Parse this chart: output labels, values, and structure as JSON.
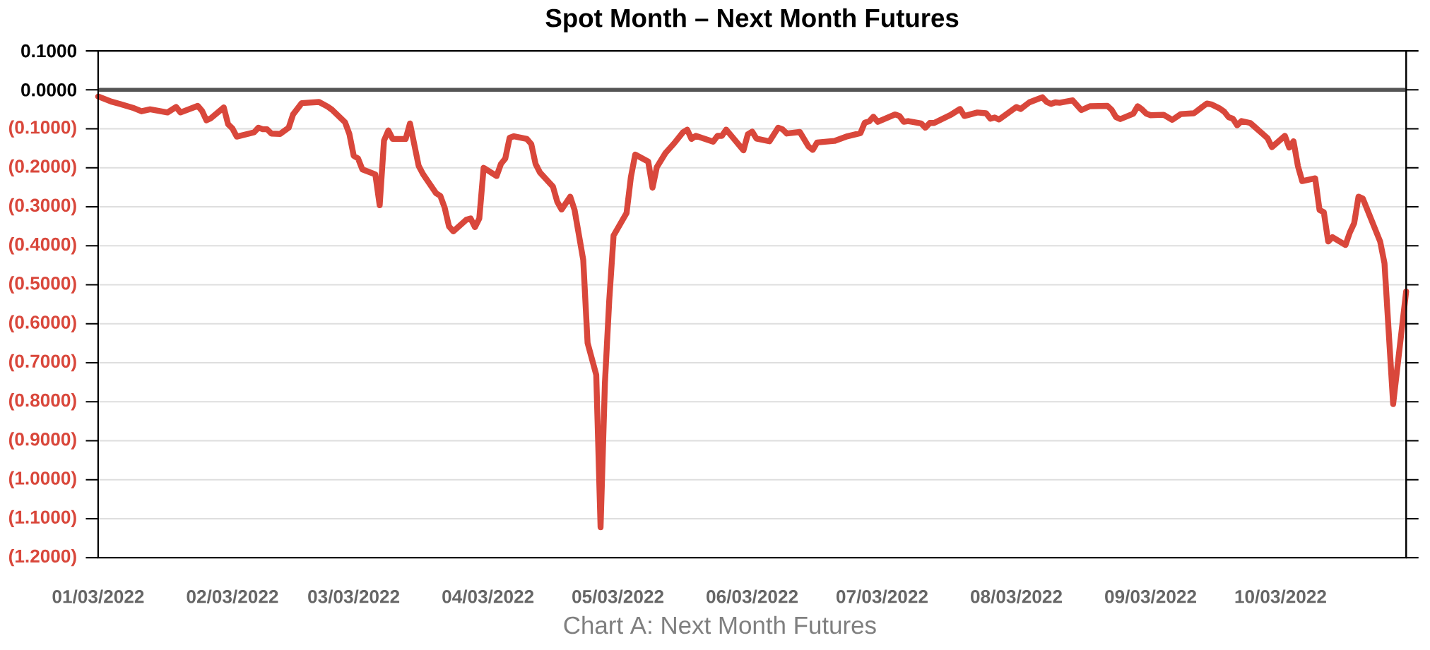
{
  "chart_data": {
    "type": "line",
    "title": "Spot Month – Next Month Futures",
    "annotations": [
      "Chart A: Next Month Futures"
    ],
    "x": [
      "2022-01-03",
      "2022-01-06",
      "2022-01-08",
      "2022-01-11",
      "2022-01-13",
      "2022-01-15",
      "2022-01-19",
      "2022-01-21",
      "2022-01-22",
      "2022-01-26",
      "2022-01-27",
      "2022-01-28",
      "2022-01-29",
      "2022-02-01",
      "2022-02-02",
      "2022-02-03",
      "2022-02-04",
      "2022-02-08",
      "2022-02-09",
      "2022-02-10",
      "2022-02-11",
      "2022-02-12",
      "2022-02-14",
      "2022-02-16",
      "2022-02-17",
      "2022-02-19",
      "2022-02-23",
      "2022-02-25",
      "2022-02-26",
      "2022-03-01",
      "2022-03-02",
      "2022-03-03",
      "2022-03-04",
      "2022-03-05",
      "2022-03-08",
      "2022-03-09",
      "2022-03-10",
      "2022-03-11",
      "2022-03-12",
      "2022-03-15",
      "2022-03-16",
      "2022-03-18",
      "2022-03-19",
      "2022-03-22",
      "2022-03-23",
      "2022-03-24",
      "2022-03-25",
      "2022-03-26",
      "2022-03-29",
      "2022-03-30",
      "2022-03-31",
      "2022-04-01",
      "2022-04-02",
      "2022-04-05",
      "2022-04-06",
      "2022-04-07",
      "2022-04-08",
      "2022-04-09",
      "2022-04-12",
      "2022-04-13",
      "2022-04-14",
      "2022-04-15",
      "2022-04-18",
      "2022-04-19",
      "2022-04-20",
      "2022-04-22",
      "2022-04-23",
      "2022-04-25",
      "2022-04-26",
      "2022-04-28",
      "2022-04-29",
      "2022-04-30",
      "2022-05-01",
      "2022-05-02",
      "2022-05-05",
      "2022-05-06",
      "2022-05-07",
      "2022-05-10",
      "2022-05-11",
      "2022-05-12",
      "2022-05-14",
      "2022-05-16",
      "2022-05-18",
      "2022-05-19",
      "2022-05-20",
      "2022-05-21",
      "2022-05-25",
      "2022-05-26",
      "2022-05-27",
      "2022-05-28",
      "2022-06-01",
      "2022-06-02",
      "2022-06-03",
      "2022-06-04",
      "2022-06-07",
      "2022-06-09",
      "2022-06-10",
      "2022-06-11",
      "2022-06-14",
      "2022-06-16",
      "2022-06-17",
      "2022-06-18",
      "2022-06-22",
      "2022-06-25",
      "2022-06-28",
      "2022-06-29",
      "2022-06-30",
      "2022-07-01",
      "2022-07-02",
      "2022-07-06",
      "2022-07-07",
      "2022-07-08",
      "2022-07-09",
      "2022-07-12",
      "2022-07-13",
      "2022-07-14",
      "2022-07-15",
      "2022-07-19",
      "2022-07-21",
      "2022-07-22",
      "2022-07-24",
      "2022-07-25",
      "2022-07-27",
      "2022-07-28",
      "2022-07-29",
      "2022-07-30",
      "2022-08-03",
      "2022-08-04",
      "2022-08-06",
      "2022-08-09",
      "2022-08-10",
      "2022-08-11",
      "2022-08-12",
      "2022-08-13",
      "2022-08-16",
      "2022-08-18",
      "2022-08-20",
      "2022-08-24",
      "2022-08-25",
      "2022-08-26",
      "2022-08-27",
      "2022-08-30",
      "2022-08-31",
      "2022-09-01",
      "2022-09-02",
      "2022-09-03",
      "2022-09-06",
      "2022-09-08",
      "2022-09-10",
      "2022-09-13",
      "2022-09-15",
      "2022-09-16",
      "2022-09-17",
      "2022-09-19",
      "2022-09-20",
      "2022-09-21",
      "2022-09-22",
      "2022-09-23",
      "2022-09-24",
      "2022-09-26",
      "2022-09-29",
      "2022-09-30",
      "2022-10-01",
      "2022-10-04",
      "2022-10-05",
      "2022-10-06",
      "2022-10-07",
      "2022-10-08",
      "2022-10-11",
      "2022-10-12",
      "2022-10-13",
      "2022-10-14",
      "2022-10-15",
      "2022-10-18",
      "2022-10-19",
      "2022-10-20",
      "2022-10-21",
      "2022-10-22",
      "2022-10-26",
      "2022-10-27",
      "2022-10-29",
      "2022-11-01"
    ],
    "series": [
      {
        "color": "#d9473b",
        "values": [
          -0.017,
          -0.03,
          -0.036,
          -0.046,
          -0.055,
          -0.05,
          -0.058,
          -0.044,
          -0.058,
          -0.041,
          -0.054,
          -0.078,
          -0.073,
          -0.045,
          -0.088,
          -0.099,
          -0.12,
          -0.109,
          -0.097,
          -0.101,
          -0.101,
          -0.112,
          -0.113,
          -0.097,
          -0.063,
          -0.034,
          -0.031,
          -0.043,
          -0.051,
          -0.083,
          -0.113,
          -0.169,
          -0.176,
          -0.204,
          -0.217,
          -0.296,
          -0.13,
          -0.104,
          -0.126,
          -0.126,
          -0.086,
          -0.195,
          -0.216,
          -0.265,
          -0.272,
          -0.302,
          -0.35,
          -0.363,
          -0.333,
          -0.33,
          -0.352,
          -0.33,
          -0.2,
          -0.221,
          -0.19,
          -0.176,
          -0.123,
          -0.119,
          -0.126,
          -0.139,
          -0.19,
          -0.212,
          -0.248,
          -0.287,
          -0.307,
          -0.274,
          -0.308,
          -0.436,
          -0.649,
          -0.731,
          -1.122,
          -0.753,
          -0.541,
          -0.374,
          -0.316,
          -0.224,
          -0.166,
          -0.184,
          -0.251,
          -0.198,
          -0.162,
          -0.137,
          -0.109,
          -0.102,
          -0.126,
          -0.118,
          -0.133,
          -0.118,
          -0.118,
          -0.102,
          -0.155,
          -0.114,
          -0.107,
          -0.125,
          -0.132,
          -0.097,
          -0.101,
          -0.112,
          -0.108,
          -0.145,
          -0.154,
          -0.135,
          -0.131,
          -0.119,
          -0.111,
          -0.084,
          -0.081,
          -0.069,
          -0.082,
          -0.063,
          -0.067,
          -0.082,
          -0.08,
          -0.086,
          -0.097,
          -0.085,
          -0.085,
          -0.063,
          -0.049,
          -0.067,
          -0.061,
          -0.058,
          -0.06,
          -0.074,
          -0.071,
          -0.076,
          -0.044,
          -0.049,
          -0.032,
          -0.019,
          -0.031,
          -0.036,
          -0.032,
          -0.033,
          -0.027,
          -0.052,
          -0.042,
          -0.041,
          -0.051,
          -0.07,
          -0.075,
          -0.061,
          -0.042,
          -0.05,
          -0.061,
          -0.065,
          -0.064,
          -0.077,
          -0.062,
          -0.06,
          -0.043,
          -0.035,
          -0.037,
          -0.048,
          -0.056,
          -0.07,
          -0.074,
          -0.091,
          -0.08,
          -0.085,
          -0.114,
          -0.124,
          -0.147,
          -0.118,
          -0.148,
          -0.132,
          -0.195,
          -0.234,
          -0.227,
          -0.308,
          -0.314,
          -0.389,
          -0.378,
          -0.398,
          -0.366,
          -0.342,
          -0.274,
          -0.279,
          -0.389,
          -0.445,
          -0.806,
          -0.517
        ]
      }
    ],
    "xlim": [
      "2022-01-03",
      "2022-11-01"
    ],
    "xticks": [
      {
        "value": "2022-01-03",
        "label": "01/03/2022"
      },
      {
        "value": "2022-02-03",
        "label": "02/03/2022"
      },
      {
        "value": "2022-03-03",
        "label": "03/03/2022"
      },
      {
        "value": "2022-04-03",
        "label": "04/03/2022"
      },
      {
        "value": "2022-05-03",
        "label": "05/03/2022"
      },
      {
        "value": "2022-06-03",
        "label": "06/03/2022"
      },
      {
        "value": "2022-07-03",
        "label": "07/03/2022"
      },
      {
        "value": "2022-08-03",
        "label": "08/03/2022"
      },
      {
        "value": "2022-09-03",
        "label": "09/03/2022"
      },
      {
        "value": "2022-10-03",
        "label": "10/03/2022"
      }
    ],
    "ylim": [
      -1.2,
      0.1
    ],
    "yticks": [
      {
        "value": 0.1,
        "label": "0.1000"
      },
      {
        "value": 0,
        "label": "0.0000"
      },
      {
        "value": -0.1,
        "label": "(0.1000)"
      },
      {
        "value": -0.2,
        "label": "(0.2000)"
      },
      {
        "value": -0.3,
        "label": "(0.3000)"
      },
      {
        "value": -0.4,
        "label": "(0.4000)"
      },
      {
        "value": -0.5,
        "label": "(0.5000)"
      },
      {
        "value": -0.6,
        "label": "(0.6000)"
      },
      {
        "value": -0.7,
        "label": "(0.7000)"
      },
      {
        "value": -0.8,
        "label": "(0.8000)"
      },
      {
        "value": -0.9,
        "label": "(0.9000)"
      },
      {
        "value": -1.0,
        "label": "(1.0000)"
      },
      {
        "value": -1.1,
        "label": "(1.1000)"
      },
      {
        "value": -1.2,
        "label": "(1.2000)"
      }
    ],
    "ref_lines": [
      {
        "axis": "y",
        "value": 0,
        "color": "#555555"
      }
    ],
    "grid": "y",
    "marker": "none",
    "line_style": "solid"
  }
}
